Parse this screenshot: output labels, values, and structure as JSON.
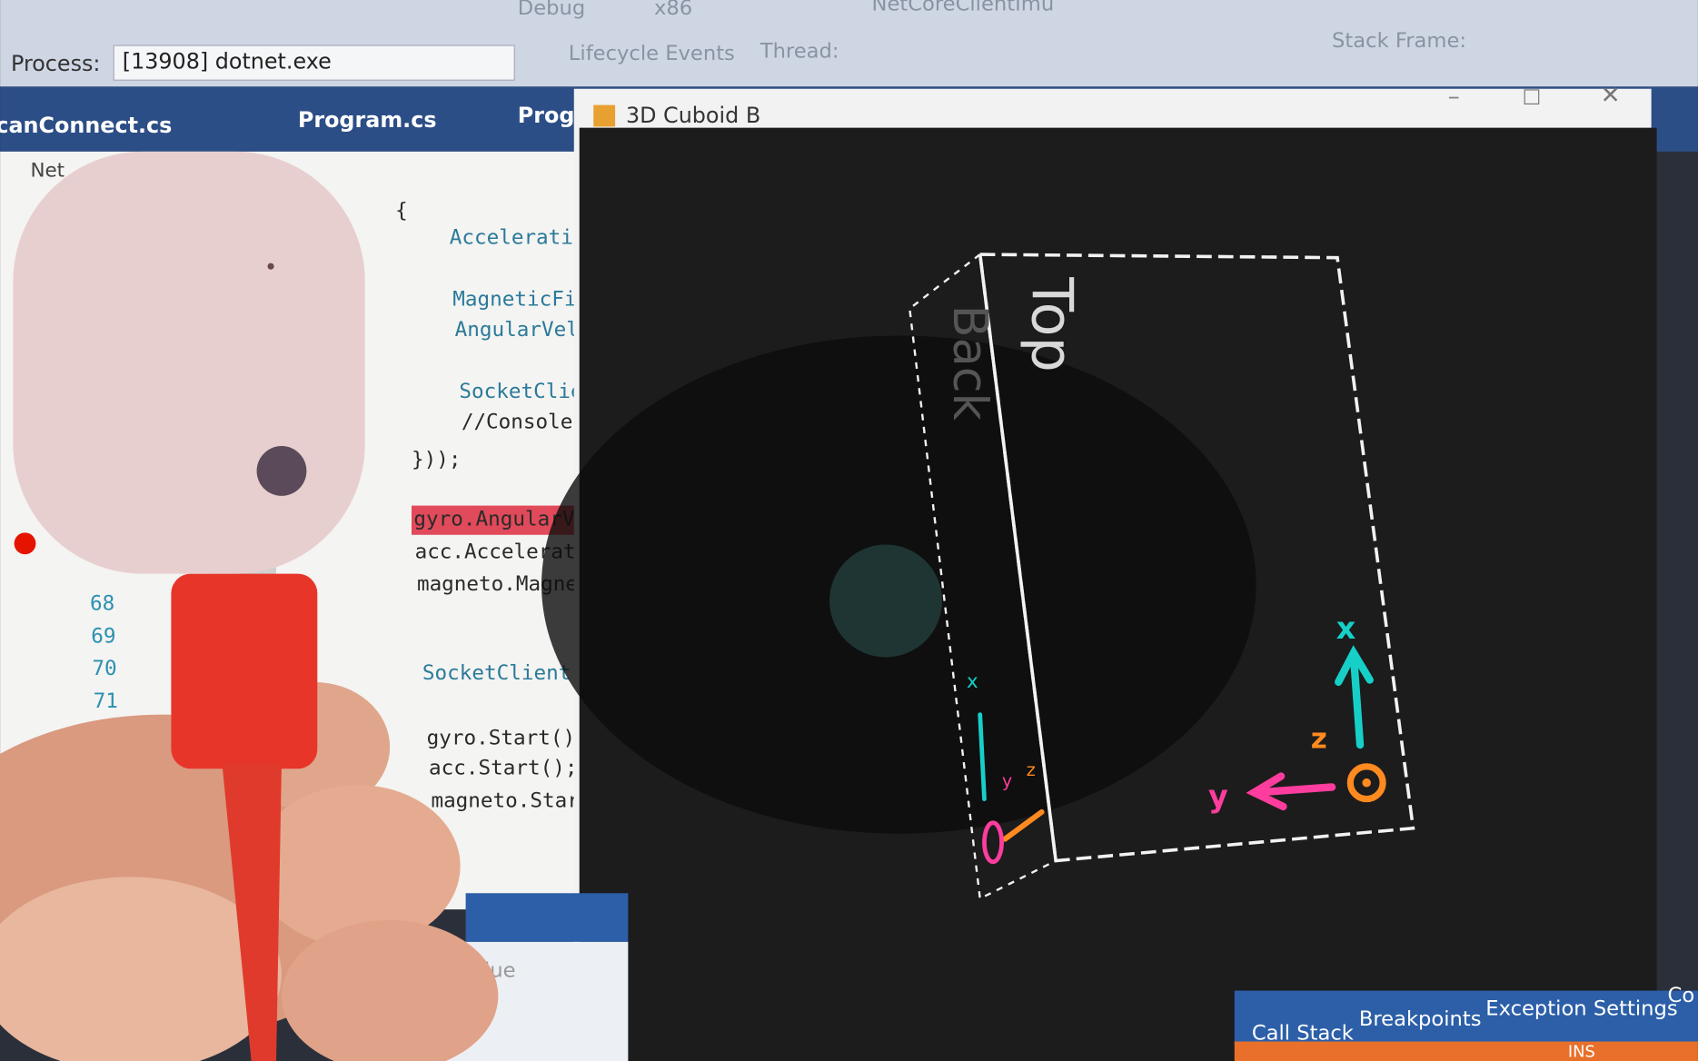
{
  "toolbar": {
    "config": "Debug",
    "platform": "x86",
    "project": "NetCoreClientImu",
    "process_label": "Process:",
    "process_value": "[13908] dotnet.exe",
    "lifecycle": "Lifecycle Events",
    "thread_label": "Thread:",
    "stack_frame": "Stack Frame:"
  },
  "tabs": [
    "canConnect.cs",
    "Program.cs",
    "Progr"
  ],
  "solution_item": "Net",
  "code": {
    "lines": [
      "{",
      "Accelerati",
      "MagneticFi",
      "AngularVel",
      "SocketClie",
      "//Console.",
      "}));",
      "gyro.AngularVe",
      "acc.Accelerati",
      "magneto.Magnet",
      "SocketClient.C",
      "gyro.Start();",
      "acc.Start();",
      "magneto.Start("
    ],
    "line_numbers": [
      "68",
      "69",
      "70",
      "71"
    ]
  },
  "window": {
    "title": "3D Cuboid B",
    "faces": [
      "Top",
      "Back"
    ],
    "axes_main": [
      "x",
      "y",
      "z"
    ],
    "axes_small": [
      "x",
      "y",
      "z"
    ]
  },
  "bottom": {
    "value_header": "Value",
    "tabs": [
      "Call Stack",
      "Breakpoints",
      "Exception Settings",
      "Co"
    ],
    "status": "INS"
  }
}
